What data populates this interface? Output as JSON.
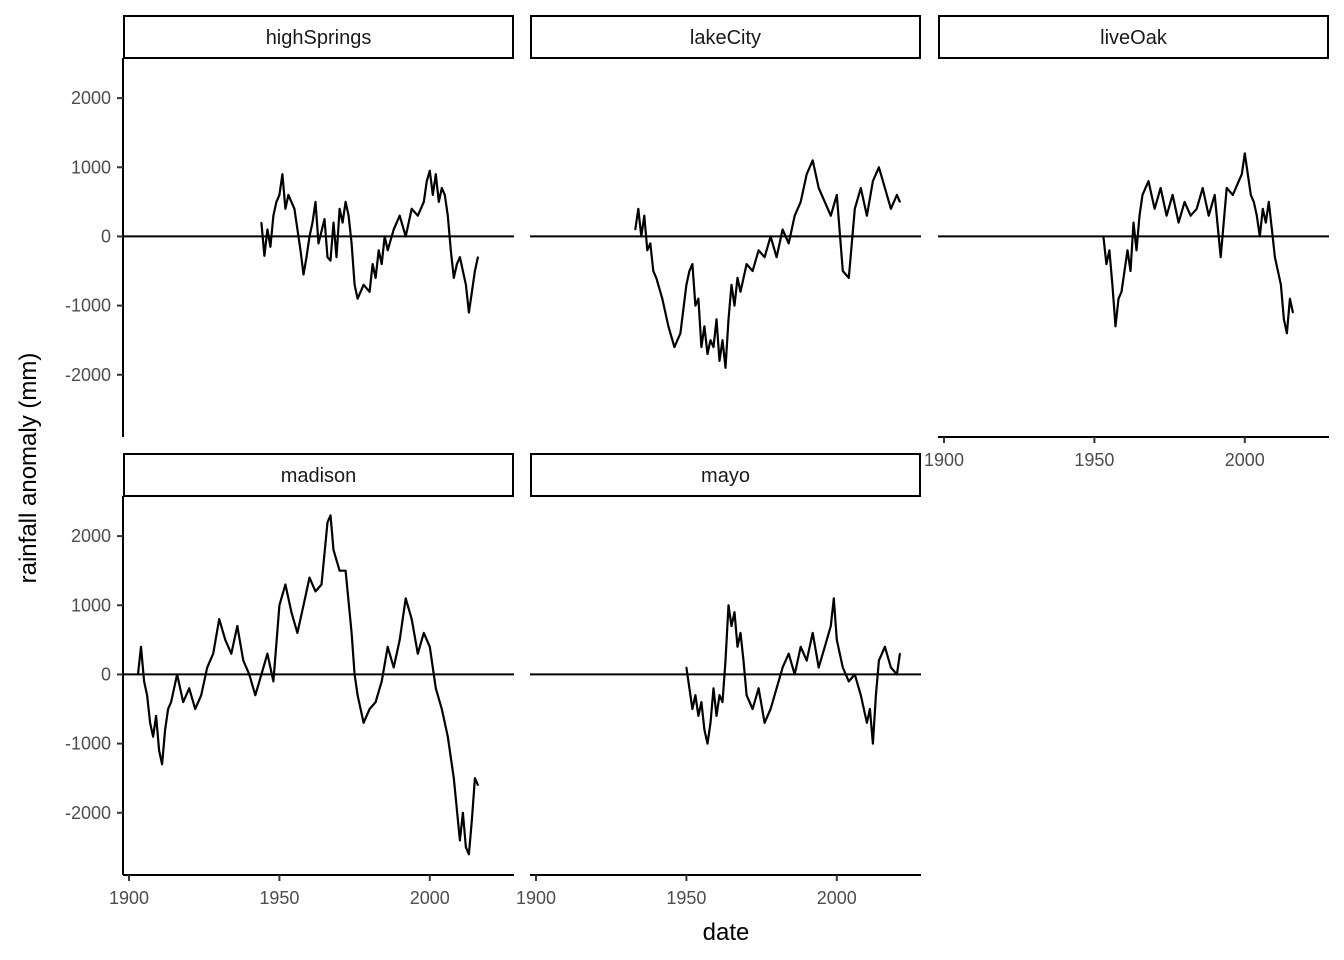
{
  "chart_data": {
    "type": "line",
    "facet_layout": "3 columns, 2 rows, free x axis shown under bottom panel of each column",
    "xlabel": "date",
    "ylabel": "rainfall anomaly (mm)",
    "xlim": [
      1898,
      2028
    ],
    "ylim": [
      -2900,
      2580
    ],
    "x_ticks": [
      1900,
      1950,
      2000
    ],
    "y_ticks": [
      -2000,
      -1000,
      0,
      1000,
      2000
    ],
    "reference_line_y": 0,
    "grid": false,
    "line_color": "#000000",
    "panels": [
      {
        "name": "highSprings",
        "x": [
          1944,
          1945,
          1946,
          1947,
          1948,
          1949,
          1950,
          1951,
          1952,
          1953,
          1955,
          1957,
          1958,
          1959,
          1960,
          1961,
          1962,
          1963,
          1965,
          1966,
          1967,
          1968,
          1969,
          1970,
          1971,
          1972,
          1973,
          1974,
          1975,
          1976,
          1978,
          1980,
          1981,
          1982,
          1983,
          1984,
          1985,
          1986,
          1988,
          1990,
          1992,
          1994,
          1996,
          1998,
          1999,
          2000,
          2001,
          2002,
          2003,
          2004,
          2005,
          2006,
          2007,
          2008,
          2009,
          2010,
          2011,
          2012,
          2013,
          2014,
          2015,
          2016
        ],
        "values": [
          200,
          -280,
          100,
          -150,
          300,
          500,
          600,
          900,
          400,
          600,
          400,
          -200,
          -550,
          -300,
          0,
          200,
          500,
          -100,
          250,
          -300,
          -350,
          200,
          -300,
          400,
          200,
          500,
          300,
          -100,
          -700,
          -900,
          -700,
          -800,
          -400,
          -600,
          -200,
          -400,
          0,
          -200,
          100,
          300,
          0,
          400,
          300,
          500,
          800,
          950,
          600,
          900,
          500,
          700,
          600,
          300,
          -200,
          -600,
          -400,
          -300,
          -500,
          -700,
          -1100,
          -800,
          -500,
          -300
        ]
      },
      {
        "name": "lakeCity",
        "x": [
          1933,
          1934,
          1935,
          1936,
          1937,
          1938,
          1939,
          1940,
          1942,
          1944,
          1946,
          1948,
          1950,
          1951,
          1952,
          1953,
          1954,
          1955,
          1956,
          1957,
          1958,
          1959,
          1960,
          1961,
          1962,
          1963,
          1964,
          1965,
          1966,
          1967,
          1968,
          1970,
          1972,
          1974,
          1976,
          1978,
          1980,
          1982,
          1984,
          1986,
          1988,
          1990,
          1992,
          1994,
          1996,
          1998,
          2000,
          2002,
          2004,
          2006,
          2008,
          2010,
          2012,
          2014,
          2016,
          2018,
          2020,
          2021
        ],
        "values": [
          100,
          400,
          0,
          300,
          -200,
          -100,
          -500,
          -600,
          -900,
          -1300,
          -1600,
          -1400,
          -700,
          -500,
          -400,
          -1000,
          -900,
          -1600,
          -1300,
          -1700,
          -1500,
          -1600,
          -1200,
          -1800,
          -1500,
          -1900,
          -1200,
          -700,
          -1000,
          -600,
          -800,
          -400,
          -500,
          -200,
          -300,
          0,
          -300,
          100,
          -100,
          300,
          500,
          900,
          1100,
          700,
          500,
          300,
          600,
          -500,
          -600,
          400,
          700,
          300,
          800,
          1000,
          700,
          400,
          600,
          500
        ]
      },
      {
        "name": "liveOak",
        "x": [
          1953,
          1954,
          1955,
          1956,
          1957,
          1958,
          1959,
          1960,
          1961,
          1962,
          1963,
          1964,
          1965,
          1966,
          1968,
          1970,
          1972,
          1974,
          1976,
          1978,
          1980,
          1982,
          1984,
          1986,
          1988,
          1990,
          1992,
          1994,
          1996,
          1998,
          1999,
          2000,
          2001,
          2002,
          2003,
          2004,
          2005,
          2006,
          2007,
          2008,
          2009,
          2010,
          2011,
          2012,
          2013,
          2014,
          2015,
          2016
        ],
        "values": [
          0,
          -400,
          -200,
          -700,
          -1300,
          -900,
          -800,
          -500,
          -200,
          -500,
          200,
          -200,
          300,
          600,
          800,
          400,
          700,
          300,
          600,
          200,
          500,
          300,
          400,
          700,
          300,
          600,
          -300,
          700,
          600,
          800,
          900,
          1200,
          900,
          600,
          500,
          300,
          0,
          400,
          200,
          500,
          100,
          -300,
          -500,
          -700,
          -1200,
          -1400,
          -900,
          -1100
        ]
      },
      {
        "name": "madison",
        "x": [
          1903,
          1904,
          1905,
          1906,
          1907,
          1908,
          1909,
          1910,
          1911,
          1912,
          1913,
          1914,
          1916,
          1918,
          1920,
          1922,
          1924,
          1926,
          1928,
          1930,
          1932,
          1934,
          1936,
          1938,
          1940,
          1942,
          1944,
          1946,
          1948,
          1950,
          1952,
          1954,
          1956,
          1958,
          1960,
          1962,
          1964,
          1966,
          1967,
          1968,
          1970,
          1972,
          1974,
          1975,
          1976,
          1978,
          1980,
          1982,
          1984,
          1986,
          1988,
          1990,
          1992,
          1994,
          1996,
          1998,
          2000,
          2002,
          2004,
          2006,
          2008,
          2010,
          2011,
          2012,
          2013,
          2014,
          2015,
          2016
        ],
        "values": [
          0,
          400,
          -100,
          -300,
          -700,
          -900,
          -600,
          -1100,
          -1300,
          -800,
          -500,
          -400,
          0,
          -400,
          -200,
          -500,
          -300,
          100,
          300,
          800,
          500,
          300,
          700,
          200,
          0,
          -300,
          0,
          300,
          -100,
          1000,
          1300,
          900,
          600,
          1000,
          1400,
          1200,
          1300,
          2200,
          2300,
          1800,
          1500,
          1500,
          600,
          0,
          -300,
          -700,
          -500,
          -400,
          -100,
          400,
          100,
          500,
          1100,
          800,
          300,
          600,
          400,
          -200,
          -500,
          -900,
          -1500,
          -2400,
          -2000,
          -2500,
          -2600,
          -2100,
          -1500,
          -1600
        ]
      },
      {
        "name": "mayo",
        "x": [
          1950,
          1951,
          1952,
          1953,
          1954,
          1955,
          1956,
          1957,
          1958,
          1959,
          1960,
          1961,
          1962,
          1963,
          1964,
          1965,
          1966,
          1967,
          1968,
          1969,
          1970,
          1972,
          1974,
          1976,
          1978,
          1980,
          1982,
          1984,
          1986,
          1988,
          1990,
          1992,
          1994,
          1996,
          1998,
          1999,
          2000,
          2001,
          2002,
          2004,
          2006,
          2008,
          2010,
          2011,
          2012,
          2013,
          2014,
          2016,
          2018,
          2020,
          2021
        ],
        "values": [
          100,
          -200,
          -500,
          -300,
          -600,
          -400,
          -800,
          -1000,
          -700,
          -200,
          -600,
          -300,
          -400,
          200,
          1000,
          700,
          900,
          400,
          600,
          200,
          -300,
          -500,
          -200,
          -700,
          -500,
          -200,
          100,
          300,
          0,
          400,
          200,
          600,
          100,
          400,
          700,
          1100,
          500,
          300,
          100,
          -100,
          0,
          -300,
          -700,
          -500,
          -1000,
          -300,
          200,
          400,
          100,
          0,
          300
        ]
      }
    ]
  }
}
